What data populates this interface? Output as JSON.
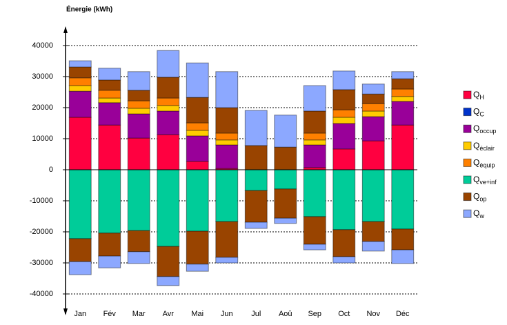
{
  "chart_data": {
    "type": "stacked_bar",
    "y_label": "Énergie (kWh)",
    "categories": [
      "Jan",
      "Fév",
      "Mar",
      "Avr",
      "Mai",
      "Jun",
      "Jul",
      "Aoû",
      "Sep",
      "Oct",
      "Nov",
      "Déc"
    ],
    "ylim": [
      -40000,
      40000
    ],
    "yticks": [
      -40000,
      -30000,
      -20000,
      -10000,
      0,
      10000,
      20000,
      30000,
      40000
    ],
    "grid": true,
    "legend": "right",
    "series": [
      {
        "name": "QH",
        "color": "#ff0040",
        "values": [
          16900,
          14400,
          10200,
          11300,
          2700,
          400,
          0,
          0,
          700,
          6700,
          9300,
          14400
        ]
      },
      {
        "name": "QC",
        "color": "#0033cc",
        "values": [
          0,
          0,
          0,
          0,
          0,
          0,
          0,
          0,
          0,
          0,
          0,
          0
        ]
      },
      {
        "name": "Qoccup",
        "color": "#990099",
        "values": [
          8400,
          7200,
          7800,
          7600,
          8200,
          7600,
          0,
          0,
          7300,
          8200,
          7800,
          7600
        ]
      },
      {
        "name": "Qéclair",
        "color": "#ffcc00",
        "values": [
          1800,
          1500,
          1800,
          1800,
          1800,
          1600,
          0,
          0,
          1600,
          2000,
          1800,
          1600
        ]
      },
      {
        "name": "Qéquip",
        "color": "#ff8000",
        "values": [
          2500,
          2500,
          2400,
          2400,
          2400,
          2200,
          0,
          0,
          2200,
          2400,
          2400,
          2400
        ]
      },
      {
        "name": "Qve+inf",
        "color": "#00cc99",
        "values": [
          -22200,
          -20400,
          -19600,
          -24700,
          -19800,
          -16700,
          -6700,
          -6200,
          -15100,
          -19300,
          -16700,
          -19100
        ]
      },
      {
        "name": "Qop",
        "color": "#994400",
        "values": [
          3500,
          3300,
          3400,
          6700,
          8200,
          8200,
          7800,
          7300,
          7100,
          6500,
          3100,
          3300
        ],
        "negative_values": [
          -7400,
          -7400,
          -6800,
          -9700,
          -10600,
          -11500,
          -10200,
          -9400,
          -8900,
          -8700,
          -6400,
          -6700
        ]
      },
      {
        "name": "Qw",
        "color": "#8ca8ff",
        "values": [
          2000,
          3800,
          6000,
          8600,
          11100,
          11600,
          11300,
          10300,
          8200,
          6000,
          3200,
          2300
        ],
        "negative_values": [
          -4200,
          -3800,
          -3800,
          -2900,
          -2300,
          -1800,
          -2000,
          -1700,
          -1800,
          -2000,
          -3100,
          -4400
        ]
      }
    ]
  }
}
